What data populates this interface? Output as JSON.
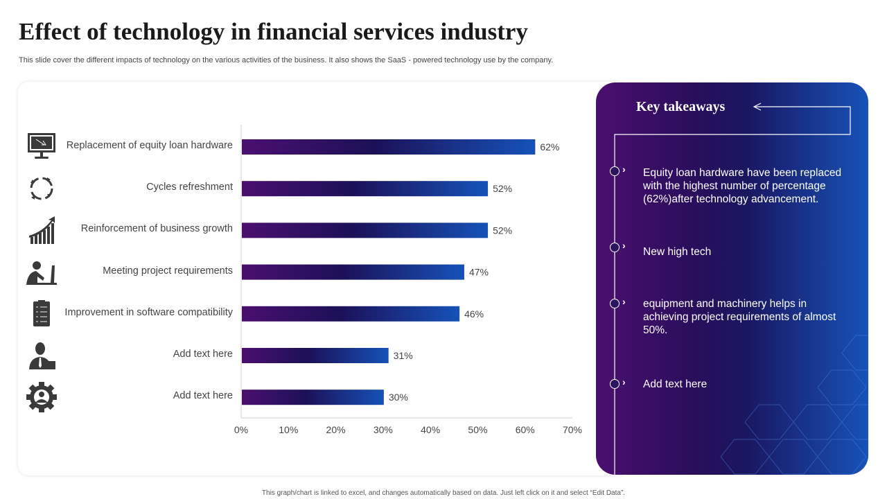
{
  "title": "Effect of technology in financial services industry",
  "subtitle": "This slide cover the different impacts of technology on the various activities of the business. It also shows the SaaS - powered technology use by the company.",
  "chart_data": {
    "type": "bar",
    "orientation": "horizontal",
    "categories": [
      "Replacement of equity loan  hardware",
      "Cycles refreshment",
      "Reinforcement of business growth",
      "Meeting project requirements",
      "Improvement in software compatibility",
      "Add text here",
      "Add text here"
    ],
    "icons": [
      "monitor-icon",
      "cycle-icon",
      "growth-chart-icon",
      "person-laptop-icon",
      "checklist-icon",
      "businessman-icon",
      "gear-person-icon"
    ],
    "values": [
      62,
      52,
      52,
      47,
      46,
      31,
      30
    ],
    "value_labels": [
      "62%",
      "52%",
      "52%",
      "47%",
      "46%",
      "31%",
      "30%"
    ],
    "xlim": [
      0,
      70
    ],
    "xticks": [
      "0%",
      "10%",
      "20%",
      "30%",
      "40%",
      "50%",
      "60%",
      "70%"
    ],
    "grid": false,
    "colors": {
      "bar_start": "#4b0f6f",
      "bar_mid": "#1c1058",
      "bar_end": "#1652b8"
    }
  },
  "takeaways": {
    "title": "Key takeaways",
    "items": [
      "Equity loan hardware have been replaced with the highest number of percentage (62%)after technology advancement.",
      "New high tech",
      "equipment and machinery  helps in achieving project requirements of almost 50%.",
      "Add text here"
    ]
  },
  "footer": "This graph/chart is linked to excel, and changes automatically based on data. Just left click on it and select “Edit Data”."
}
